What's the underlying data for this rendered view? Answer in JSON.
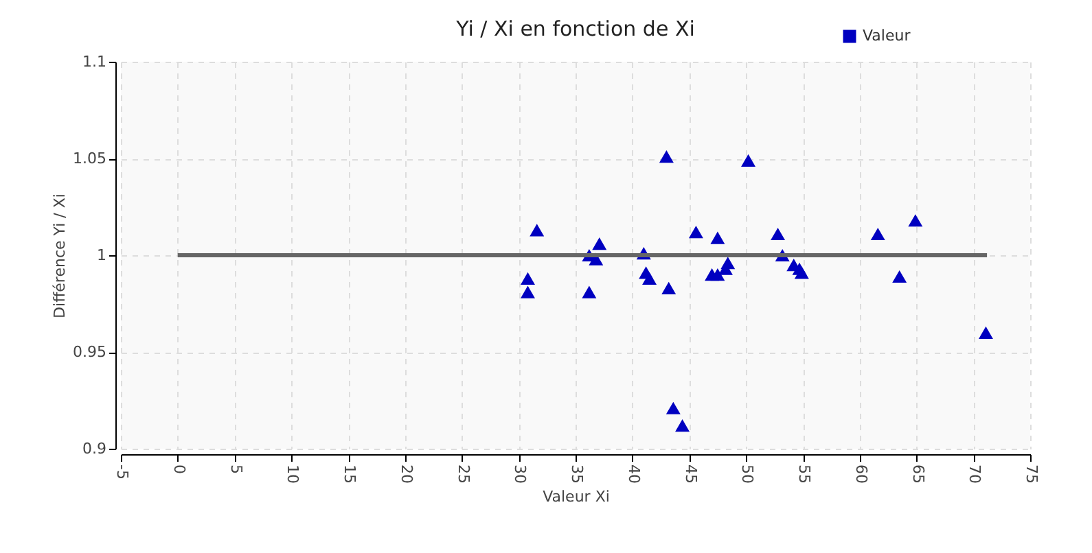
{
  "chart_data": {
    "type": "scatter",
    "title": "Yi / Xi en fonction de Xi",
    "xlabel": "Valeur Xi",
    "ylabel": "Différence Yi / Xi",
    "xlim": [
      -5,
      75
    ],
    "xticks": [
      -5,
      0,
      5,
      10,
      15,
      20,
      25,
      30,
      35,
      40,
      45,
      50,
      55,
      60,
      65,
      70,
      75
    ],
    "ylim": [
      0.9,
      1.1
    ],
    "yticks": [
      0.9,
      0.95,
      1,
      1.05,
      1.1
    ],
    "grid": true,
    "legend": "top right",
    "series": [
      {
        "name": "Valeur",
        "color": "#0000c0",
        "marker": "triangle",
        "x": [
          30.8,
          30.8,
          31.6,
          36.2,
          36.2,
          36.8,
          37.1,
          41.0,
          41.2,
          41.5,
          43.0,
          43.2,
          43.6,
          44.4,
          45.6,
          47.0,
          47.5,
          47.5,
          48.2,
          48.4,
          50.2,
          52.8,
          53.2,
          54.2,
          54.7,
          54.9,
          61.6,
          63.5,
          64.9,
          71.1
        ],
        "values": [
          0.988,
          0.981,
          1.013,
          1.0,
          0.981,
          0.998,
          1.006,
          1.001,
          0.991,
          0.988,
          1.051,
          0.983,
          0.921,
          0.912,
          1.012,
          0.99,
          1.009,
          0.99,
          0.993,
          0.996,
          1.049,
          1.011,
          1.0,
          0.995,
          0.993,
          0.991,
          1.011,
          0.989,
          1.018,
          0.96
        ]
      },
      {
        "type": "line",
        "marker": "none",
        "color": "#666666",
        "x": [
          0,
          71.2
        ],
        "values": [
          1,
          1
        ]
      }
    ]
  }
}
